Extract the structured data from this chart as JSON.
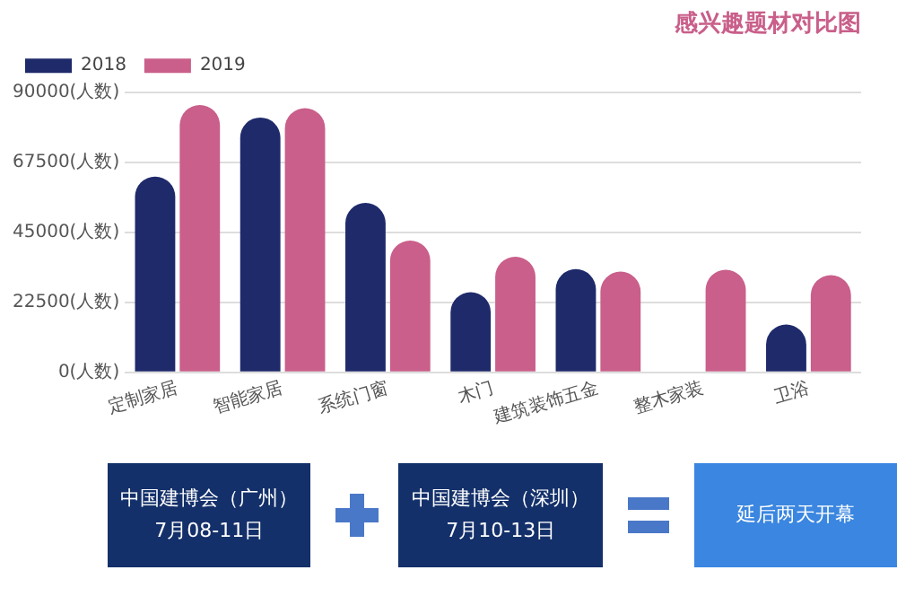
{
  "chart_data": {
    "type": "bar",
    "title": "感兴趣题材对比图",
    "categories": [
      "定制家居",
      "智能家居",
      "系统门窗",
      "木门",
      "建筑装饰五金",
      "整木家装",
      "卫浴"
    ],
    "series": [
      {
        "name": "2018",
        "color": "#1f2a6b",
        "values": [
          63000,
          82000,
          54500,
          25800,
          33200,
          null,
          15400
        ]
      },
      {
        "name": "2019",
        "color": "#c95f8a",
        "values": [
          86000,
          85000,
          42400,
          37200,
          32400,
          33000,
          31300
        ]
      }
    ],
    "ylim": [
      0,
      90000
    ],
    "yticks": [
      {
        "value": 0,
        "label": "0(人数)"
      },
      {
        "value": 22500,
        "label": "22500(人数)"
      },
      {
        "value": 45000,
        "label": "45000(人数)"
      },
      {
        "value": 67500,
        "label": "67500(人数)"
      },
      {
        "value": 90000,
        "label": "90000(人数)"
      }
    ],
    "grid": "y",
    "legend": "top left",
    "annotations": [
      "中国建博会（广州）\n7月08-11日",
      "中国建博会（深圳）\n7月10-13日",
      "延后两天开幕"
    ]
  }
}
